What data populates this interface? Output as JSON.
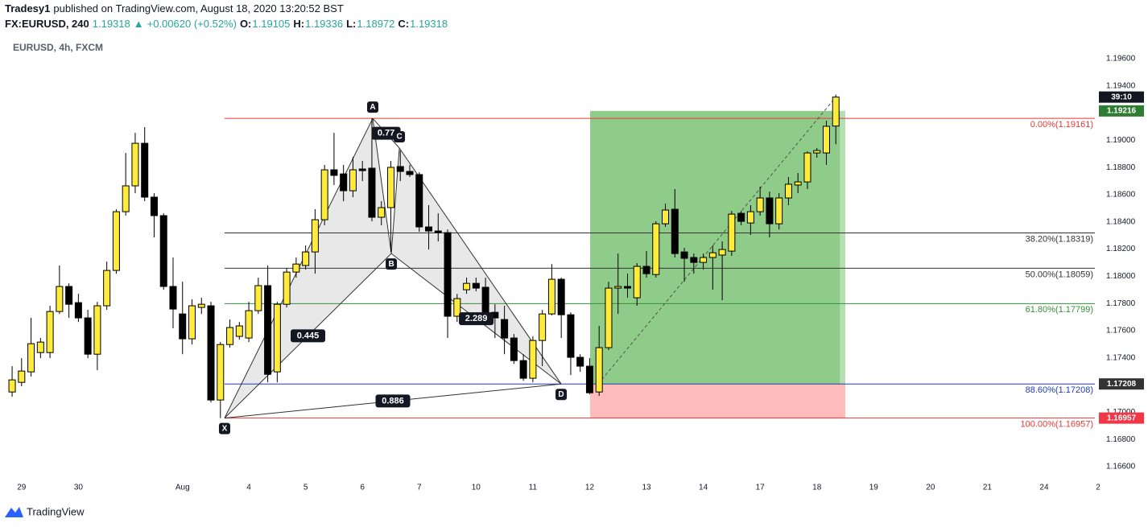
{
  "header": {
    "line1": [
      {
        "text": "Tradesy1",
        "bold": true
      },
      {
        "text": "published on TradingView.com, August 18, 2020 13:20:52 BST"
      }
    ],
    "line2": [
      {
        "text": "FX:EURUSD, 240",
        "bold": true
      },
      {
        "text": "1.19318",
        "color": "#26a69a"
      },
      {
        "text": "▲",
        "color": "#26a69a"
      },
      {
        "text": "+0.00620 (+0.52%)",
        "color": "#26a69a"
      },
      {
        "text": "O:",
        "bold": true
      },
      {
        "text": "1.19105",
        "color": "#26a69a"
      },
      {
        "text": "H:",
        "bold": true
      },
      {
        "text": "1.19336",
        "color": "#26a69a"
      },
      {
        "text": "L:",
        "bold": true
      },
      {
        "text": "1.18972",
        "color": "#26a69a"
      },
      {
        "text": "C:",
        "bold": true
      },
      {
        "text": "1.19318",
        "color": "#26a69a"
      }
    ]
  },
  "chart_data": {
    "type": "candlestick",
    "legend": "EURUSD, 4h, FXCM",
    "up_color": "#ffeb3b",
    "down_color": "#000000",
    "xlim": [
      -1.28,
      114.7
    ],
    "ylim": [
      1.16511,
      1.19736
    ],
    "xticks": [
      {
        "value": 1,
        "label": "29"
      },
      {
        "value": 7,
        "label": "30"
      },
      {
        "value": 18,
        "label": "Aug"
      },
      {
        "value": 25,
        "label": "4"
      },
      {
        "value": 31,
        "label": "5"
      },
      {
        "value": 37,
        "label": "6"
      },
      {
        "value": 43,
        "label": "7"
      },
      {
        "value": 49,
        "label": "10"
      },
      {
        "value": 55,
        "label": "11"
      },
      {
        "value": 61,
        "label": "12"
      },
      {
        "value": 67,
        "label": "13"
      },
      {
        "value": 73,
        "label": "14"
      },
      {
        "value": 79,
        "label": "17"
      },
      {
        "value": 85,
        "label": "18"
      },
      {
        "value": 91,
        "label": "19"
      },
      {
        "value": 97,
        "label": "20"
      },
      {
        "value": 103,
        "label": "21"
      },
      {
        "value": 109,
        "label": "24"
      },
      {
        "value": 114.7,
        "label": "2"
      }
    ],
    "yticks": [
      {
        "value": 1.166,
        "label": "1.16600"
      },
      {
        "value": 1.168,
        "label": "1.16800"
      },
      {
        "value": 1.17,
        "label": "1.17000"
      },
      {
        "value": 1.174,
        "label": "1.17400"
      },
      {
        "value": 1.176,
        "label": "1.17600"
      },
      {
        "value": 1.178,
        "label": "1.17800"
      },
      {
        "value": 1.18,
        "label": "1.18000"
      },
      {
        "value": 1.182,
        "label": "1.18200"
      },
      {
        "value": 1.184,
        "label": "1.18400"
      },
      {
        "value": 1.186,
        "label": "1.18600"
      },
      {
        "value": 1.188,
        "label": "1.18800"
      },
      {
        "value": 1.19,
        "label": "1.19000"
      },
      {
        "value": 1.194,
        "label": "1.19400"
      },
      {
        "value": 1.196,
        "label": "1.19600"
      }
    ],
    "open": [
      1.17149,
      1.1722,
      1.17297,
      1.17439,
      1.17439,
      1.17741,
      1.17925,
      1.17806,
      1.17694,
      1.17427,
      1.17783,
      1.18043,
      1.18475,
      1.18665,
      1.18978,
      1.18582,
      1.18446,
      1.17925,
      1.17723,
      1.1754,
      1.17771,
      1.17783,
      1.1709,
      1.17498,
      1.17558,
      1.17546,
      1.17747,
      1.17931,
      1.17297,
      1.17794,
      1.18031,
      1.18079,
      1.18179,
      1.18416,
      1.18783,
      1.18753,
      1.18629,
      1.18789,
      1.18795,
      1.18434,
      1.18505,
      1.18807,
      1.18771,
      1.18748,
      1.18363,
      1.18333,
      1.18321,
      1.17706,
      1.17901,
      1.17948,
      1.17919,
      1.17735,
      1.17682,
      1.17546,
      1.1738,
      1.1725,
      1.17528,
      1.17723,
      1.17978,
      1.17717,
      1.17404,
      1.17339,
      1.17149,
      1.17475,
      1.17913,
      1.17925,
      1.17842,
      1.18073,
      1.18013,
      1.18386,
      1.18493,
      1.18179,
      1.18138,
      1.18102,
      1.18138,
      1.18156,
      1.18185,
      1.18463,
      1.18392,
      1.18475,
      1.18576,
      1.18386,
      1.18576,
      1.18671,
      1.18694,
      1.18907,
      1.18907,
      1.19105
    ],
    "high": [
      1.17339,
      1.17398,
      1.17694,
      1.17546,
      1.17783,
      1.18079,
      1.17948,
      1.17871,
      1.17753,
      1.17812,
      1.18108,
      1.18493,
      1.18907,
      1.19055,
      1.19097,
      1.18611,
      1.18463,
      1.18138,
      1.1796,
      1.1783,
      1.17842,
      1.17812,
      1.17516,
      1.17682,
      1.17664,
      1.17812,
      1.1799,
      1.18079,
      1.17812,
      1.18061,
      1.18138,
      1.18227,
      1.18493,
      1.18819,
      1.19055,
      1.18819,
      1.18878,
      1.18848,
      1.19161,
      1.18552,
      1.18848,
      1.18925,
      1.18819,
      1.18765,
      1.18523,
      1.18463,
      1.18345,
      1.17871,
      1.1799,
      1.1799,
      1.1799,
      1.17794,
      1.17783,
      1.17575,
      1.17427,
      1.17558,
      1.17753,
      1.1809,
      1.1799,
      1.17735,
      1.17427,
      1.17398,
      1.17635,
      1.1796,
      1.18167,
      1.18019,
      1.18096,
      1.18185,
      1.18404,
      1.18534,
      1.18641,
      1.18209,
      1.18167,
      1.18167,
      1.18227,
      1.18256,
      1.18481,
      1.18481,
      1.18523,
      1.18659,
      1.18623,
      1.18611,
      1.1873,
      1.18759,
      1.18919,
      1.18943,
      1.19144,
      1.19336
    ],
    "low": [
      1.17114,
      1.17191,
      1.17262,
      1.17398,
      1.17398,
      1.17723,
      1.17694,
      1.17664,
      1.17398,
      1.17309,
      1.17753,
      1.18019,
      1.18446,
      1.18611,
      1.18552,
      1.18286,
      1.17901,
      1.17617,
      1.17427,
      1.17498,
      1.17723,
      1.17072,
      1.16957,
      1.17475,
      1.17534,
      1.17516,
      1.17723,
      1.1722,
      1.1722,
      1.17771,
      1.1799,
      1.18049,
      1.18019,
      1.18375,
      1.18671,
      1.18552,
      1.18582,
      1.187,
      1.18404,
      1.18375,
      1.18179,
      1.187,
      1.1873,
      1.18327,
      1.18197,
      1.18256,
      1.17546,
      1.17664,
      1.17871,
      1.17889,
      1.17664,
      1.17546,
      1.17427,
      1.17356,
      1.17232,
      1.1722,
      1.17339,
      1.17712,
      1.17546,
      1.17273,
      1.17297,
      1.17131,
      1.1712,
      1.17457,
      1.17723,
      1.17842,
      1.17783,
      1.1799,
      1.1799,
      1.18363,
      1.18138,
      1.1796,
      1.18019,
      1.18049,
      1.17901,
      1.17824,
      1.1815,
      1.18375,
      1.18304,
      1.18446,
      1.18286,
      1.18345,
      1.18523,
      1.18611,
      1.18641,
      1.18872,
      1.18819,
      1.18972
    ],
    "close": [
      1.17238,
      1.17303,
      1.17504,
      1.17516,
      1.17741,
      1.17925,
      1.17794,
      1.17694,
      1.17427,
      1.17783,
      1.18043,
      1.18475,
      1.18665,
      1.18978,
      1.18582,
      1.18446,
      1.17925,
      1.17759,
      1.1754,
      1.17783,
      1.17794,
      1.1709,
      1.17498,
      1.17623,
      1.17635,
      1.17747,
      1.17931,
      1.17279,
      1.17794,
      1.18031,
      1.1809,
      1.18179,
      1.18416,
      1.18783,
      1.18742,
      1.18629,
      1.18783,
      1.18777,
      1.18434,
      1.18505,
      1.18801,
      1.18771,
      1.18748,
      1.18363,
      1.18333,
      1.18321,
      1.17706,
      1.17836,
      1.17948,
      1.17913,
      1.17723,
      1.17694,
      1.17546,
      1.1738,
      1.1725,
      1.17528,
      1.17723,
      1.17978,
      1.17717,
      1.17404,
      1.17339,
      1.17143,
      1.17475,
      1.17913,
      1.17925,
      1.17913,
      1.18073,
      1.18019,
      1.18386,
      1.18487,
      1.18167,
      1.18132,
      1.18102,
      1.18138,
      1.18173,
      1.18197,
      1.18457,
      1.18404,
      1.18475,
      1.18576,
      1.18386,
      1.18576,
      1.18677,
      1.18694,
      1.18907,
      1.18925,
      1.19103,
      1.19318
    ],
    "countdown": "39:10",
    "fib_levels": [
      {
        "value": 1.19161,
        "label": "0.00%(1.19161)",
        "color": "#e53935"
      },
      {
        "value": 1.18319,
        "label": "38.20%(1.18319)",
        "color": "#333333"
      },
      {
        "value": 1.18059,
        "label": "50.00%(1.18059)",
        "color": "#333333"
      },
      {
        "value": 1.17799,
        "label": "61.80%(1.17799)",
        "color": "#388e3c"
      },
      {
        "value": 1.17208,
        "label": "88.60%(1.17208)",
        "color": "#1f3bb3"
      },
      {
        "value": 1.16957,
        "label": "100.00%(1.16957)",
        "color": "#e53935"
      }
    ],
    "pattern": {
      "points": [
        {
          "label": "X",
          "x": 22.44,
          "y": 1.16957
        },
        {
          "label": "A",
          "x": 38.09,
          "y": 1.19161
        },
        {
          "label": "B",
          "x": 40.05,
          "y": 1.18167
        },
        {
          "label": "C",
          "x": 40.9,
          "y": 1.18943
        },
        {
          "label": "D",
          "x": 57.99,
          "y": 1.17208
        }
      ],
      "ratios": [
        "0.445",
        "0.77",
        "2.289",
        "0.886"
      ]
    },
    "position": {
      "x_start": 61.05,
      "x_end": 88,
      "target": 1.19216,
      "entry": 1.17208,
      "stop": 1.16957,
      "target_color": "#2e7d32",
      "entry_color": "#333333",
      "stop_color": "#f23645"
    }
  },
  "footer": {
    "brand": "TradingView"
  }
}
